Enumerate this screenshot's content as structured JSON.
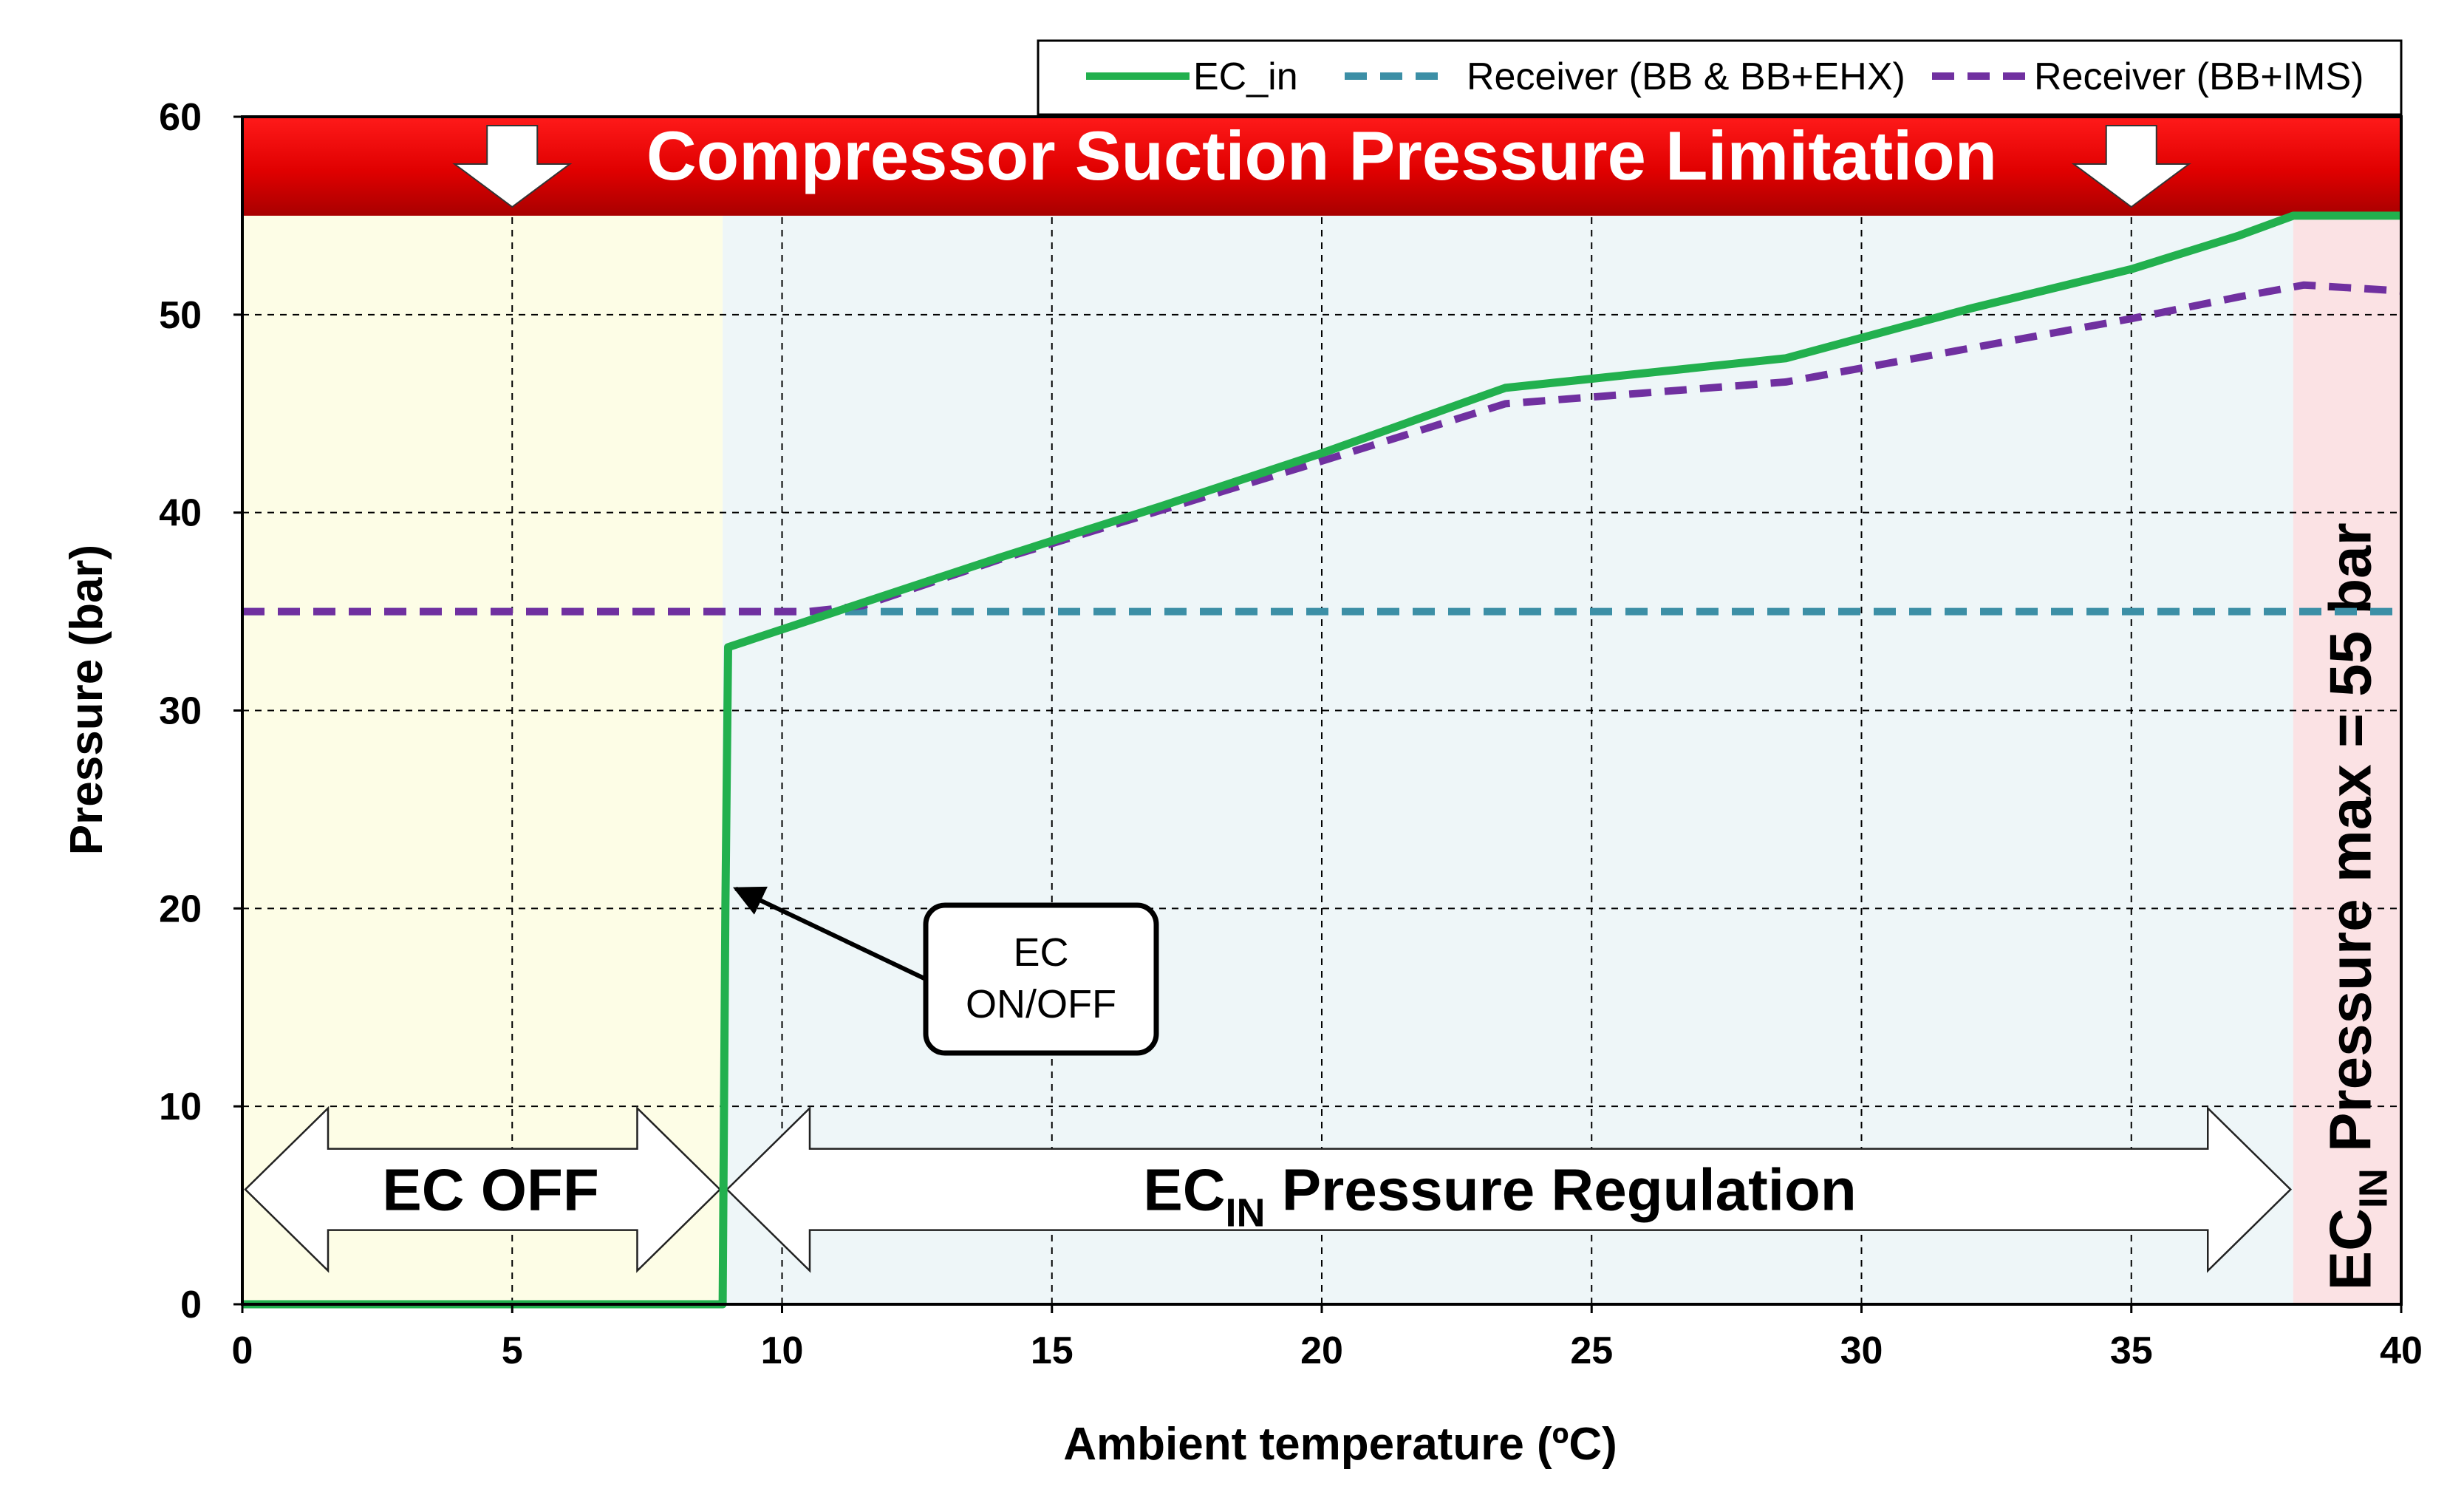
{
  "chart_data": {
    "type": "line",
    "title": "Compressor Suction Pressure Limitation",
    "xlabel": "Ambient temperature (ºC)",
    "ylabel": "Pressure (bar)",
    "xlim": [
      0,
      40
    ],
    "ylim": [
      0,
      60
    ],
    "xticks": [
      0,
      5,
      10,
      15,
      20,
      25,
      30,
      35,
      40
    ],
    "yticks": [
      0,
      10,
      20,
      30,
      40,
      50,
      60
    ],
    "grid": true,
    "legend_position": "top-right",
    "series": [
      {
        "name": "EC_in",
        "color": "#22b04e",
        "style": "solid",
        "x": [
          0,
          8.9,
          8.95,
          9.0,
          11,
          14,
          17,
          20,
          23.4,
          28.6,
          32,
          35,
          37,
          38,
          40
        ],
        "y": [
          0,
          0,
          20,
          33.2,
          35,
          37.7,
          40.3,
          43,
          46.3,
          47.8,
          50.3,
          52.3,
          54,
          55,
          55
        ]
      },
      {
        "name": "Receiver (BB & BB+EHX)",
        "color": "#3c8fa6",
        "style": "dashed",
        "x": [
          0,
          40
        ],
        "y": [
          35,
          35
        ]
      },
      {
        "name": "Receiver (BB+IMS)",
        "color": "#7030a0",
        "style": "dashed",
        "x": [
          0,
          8.9,
          10.5,
          11.5,
          14,
          17,
          20,
          23.4,
          28.6,
          32,
          35,
          37,
          38.2,
          40
        ],
        "y": [
          35,
          35,
          35,
          35.3,
          37.6,
          40.1,
          42.6,
          45.5,
          46.6,
          48.3,
          49.8,
          50.9,
          51.5,
          51.2
        ]
      }
    ],
    "regions": [
      {
        "name": "EC OFF",
        "x_range": [
          0,
          8.9
        ],
        "color": "#fdfde6"
      },
      {
        "name": "EC_IN Pressure Regulation",
        "x_range": [
          8.9,
          38
        ],
        "color": "#eef6f8"
      },
      {
        "name": "EC_IN Pressure max = 55 bar",
        "x_range": [
          38,
          40
        ],
        "color": "#fbe2e4"
      }
    ],
    "banner": {
      "text": "Compressor Suction Pressure Limitation",
      "y_range": [
        55,
        60
      ],
      "color": "#e00000"
    },
    "annotations": {
      "ec_off": "EC OFF",
      "regulation_main": "EC",
      "regulation_sub": "IN",
      "regulation_rest": " Pressure Regulation",
      "max_main": "EC",
      "max_sub": "IN",
      "max_rest": " Pressure max = 55 bar",
      "callout_line1": "EC",
      "callout_line2": "ON/OFF"
    }
  }
}
